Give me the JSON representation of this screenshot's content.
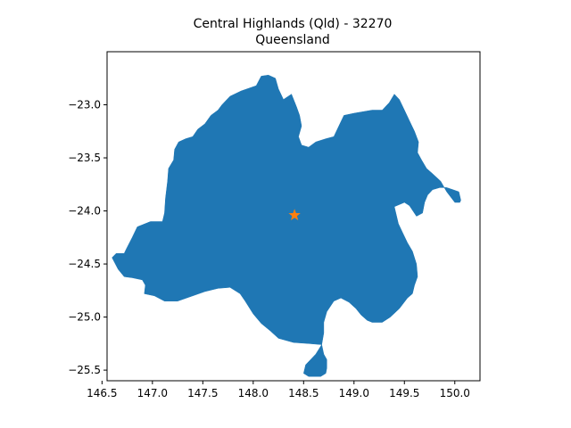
{
  "chart_data": {
    "type": "map",
    "title_line1": "Central Highlands (Qld) - 32270",
    "title_line2": "Queensland",
    "xlabel": "",
    "ylabel": "",
    "xlim": [
      146.55,
      150.25
    ],
    "ylim": [
      -25.6,
      -22.5
    ],
    "x_ticks": [
      146.5,
      147.0,
      147.5,
      148.0,
      148.5,
      149.0,
      149.5,
      150.0
    ],
    "x_tick_labels": [
      "146.5",
      "147.0",
      "147.5",
      "148.0",
      "148.5",
      "149.0",
      "149.5",
      "150.0"
    ],
    "y_ticks": [
      -23.0,
      -23.5,
      -24.0,
      -24.5,
      -25.0,
      -25.5
    ],
    "y_tick_labels": [
      "−23.0",
      "−23.5",
      "−24.0",
      "−24.5",
      "−25.0",
      "−25.5"
    ],
    "grid": false,
    "region": {
      "fill_color": "#1f77b4",
      "outline": [
        [
          148.03,
          -22.82
        ],
        [
          147.88,
          -22.87
        ],
        [
          147.77,
          -22.92
        ],
        [
          147.69,
          -23.0
        ],
        [
          147.65,
          -23.05
        ],
        [
          147.58,
          -23.1
        ],
        [
          147.52,
          -23.18
        ],
        [
          147.45,
          -23.23
        ],
        [
          147.4,
          -23.3
        ],
        [
          147.33,
          -23.32
        ],
        [
          147.26,
          -23.35
        ],
        [
          147.22,
          -23.42
        ],
        [
          147.21,
          -23.52
        ],
        [
          147.16,
          -23.6
        ],
        [
          147.15,
          -23.72
        ],
        [
          147.13,
          -23.88
        ],
        [
          147.12,
          -24.02
        ],
        [
          147.1,
          -24.1
        ],
        [
          146.98,
          -24.1
        ],
        [
          146.85,
          -24.15
        ],
        [
          146.8,
          -24.25
        ],
        [
          146.74,
          -24.36
        ],
        [
          146.72,
          -24.4
        ],
        [
          146.64,
          -24.4
        ],
        [
          146.6,
          -24.44
        ],
        [
          146.66,
          -24.55
        ],
        [
          146.72,
          -24.62
        ],
        [
          146.8,
          -24.63
        ],
        [
          146.9,
          -24.65
        ],
        [
          146.93,
          -24.7
        ],
        [
          146.92,
          -24.78
        ],
        [
          147.02,
          -24.8
        ],
        [
          147.12,
          -24.85
        ],
        [
          147.25,
          -24.85
        ],
        [
          147.4,
          -24.8
        ],
        [
          147.52,
          -24.76
        ],
        [
          147.65,
          -24.73
        ],
        [
          147.77,
          -24.72
        ],
        [
          147.87,
          -24.78
        ],
        [
          147.92,
          -24.85
        ],
        [
          148.0,
          -24.97
        ],
        [
          148.08,
          -25.06
        ],
        [
          148.17,
          -25.13
        ],
        [
          148.25,
          -25.2
        ],
        [
          148.4,
          -25.24
        ],
        [
          148.55,
          -25.25
        ],
        [
          148.68,
          -25.26
        ],
        [
          148.7,
          -25.35
        ],
        [
          148.73,
          -25.4
        ],
        [
          148.73,
          -25.48
        ],
        [
          148.72,
          -25.53
        ],
        [
          148.67,
          -25.56
        ],
        [
          148.55,
          -25.56
        ],
        [
          148.5,
          -25.53
        ],
        [
          148.52,
          -25.45
        ],
        [
          148.62,
          -25.35
        ],
        [
          148.68,
          -25.26
        ],
        [
          148.7,
          -25.15
        ],
        [
          148.7,
          -25.05
        ],
        [
          148.73,
          -24.95
        ],
        [
          148.8,
          -24.85
        ],
        [
          148.87,
          -24.82
        ],
        [
          148.95,
          -24.86
        ],
        [
          149.02,
          -24.92
        ],
        [
          149.07,
          -24.98
        ],
        [
          149.13,
          -25.03
        ],
        [
          149.18,
          -25.05
        ],
        [
          149.28,
          -25.05
        ],
        [
          149.36,
          -25.0
        ],
        [
          149.45,
          -24.92
        ],
        [
          149.53,
          -24.82
        ],
        [
          149.58,
          -24.78
        ],
        [
          149.6,
          -24.7
        ],
        [
          149.63,
          -24.62
        ],
        [
          149.62,
          -24.5
        ],
        [
          149.58,
          -24.38
        ],
        [
          149.53,
          -24.3
        ],
        [
          149.48,
          -24.2
        ],
        [
          149.44,
          -24.12
        ],
        [
          149.4,
          -23.96
        ],
        [
          149.5,
          -23.92
        ],
        [
          149.55,
          -23.95
        ],
        [
          149.62,
          -24.05
        ],
        [
          149.68,
          -24.02
        ],
        [
          149.7,
          -23.92
        ],
        [
          149.73,
          -23.85
        ],
        [
          149.78,
          -23.8
        ],
        [
          149.85,
          -23.78
        ],
        [
          149.92,
          -23.78
        ],
        [
          149.98,
          -23.8
        ],
        [
          150.04,
          -23.82
        ],
        [
          150.06,
          -23.9
        ],
        [
          150.05,
          -23.92
        ],
        [
          150.0,
          -23.92
        ],
        [
          149.92,
          -23.82
        ],
        [
          149.86,
          -23.72
        ],
        [
          149.78,
          -23.65
        ],
        [
          149.72,
          -23.6
        ],
        [
          149.67,
          -23.52
        ],
        [
          149.63,
          -23.45
        ],
        [
          149.64,
          -23.35
        ],
        [
          149.6,
          -23.25
        ],
        [
          149.55,
          -23.15
        ],
        [
          149.5,
          -23.05
        ],
        [
          149.45,
          -22.95
        ],
        [
          149.4,
          -22.9
        ],
        [
          149.35,
          -22.98
        ],
        [
          149.28,
          -23.05
        ],
        [
          149.18,
          -23.05
        ],
        [
          149.0,
          -23.08
        ],
        [
          148.9,
          -23.1
        ],
        [
          148.85,
          -23.2
        ],
        [
          148.8,
          -23.3
        ],
        [
          148.72,
          -23.32
        ],
        [
          148.62,
          -23.35
        ],
        [
          148.55,
          -23.4
        ],
        [
          148.48,
          -23.38
        ],
        [
          148.45,
          -23.3
        ],
        [
          148.48,
          -23.2
        ],
        [
          148.46,
          -23.1
        ],
        [
          148.43,
          -23.02
        ],
        [
          148.38,
          -22.9
        ],
        [
          148.3,
          -22.95
        ],
        [
          148.25,
          -22.85
        ],
        [
          148.22,
          -22.75
        ],
        [
          148.15,
          -22.72
        ],
        [
          148.08,
          -22.73
        ],
        [
          148.03,
          -22.82
        ]
      ]
    },
    "marker": {
      "x": 148.41,
      "y": -24.04,
      "shape": "star",
      "color": "#ff7f0e"
    }
  }
}
